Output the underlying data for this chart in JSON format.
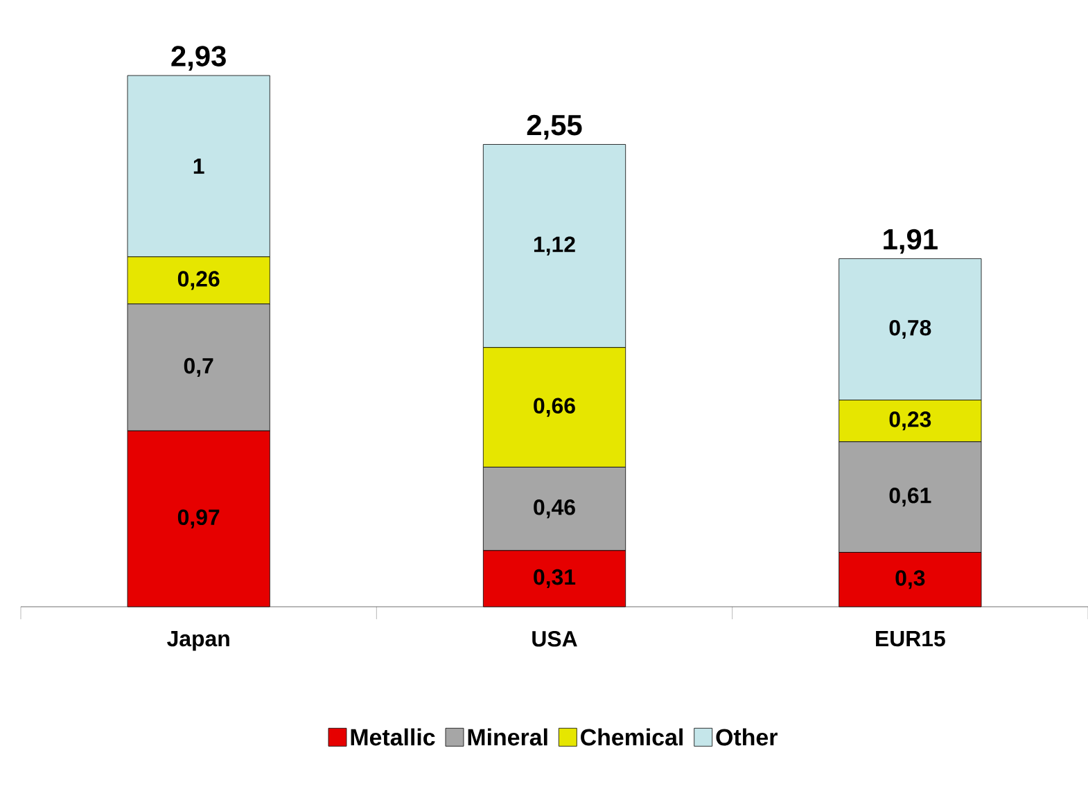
{
  "chart_data": {
    "type": "bar",
    "stacked": true,
    "legend": "bottom",
    "categories": [
      "Japan",
      "USA",
      "EUR15"
    ],
    "series": [
      {
        "name": "Metallic",
        "color": "#e60000",
        "values": [
          0.97,
          0.31,
          0.3
        ],
        "value_labels": [
          "0,97",
          "0,31",
          "0,3"
        ]
      },
      {
        "name": "Mineral",
        "color": "#a6a6a6",
        "values": [
          0.7,
          0.46,
          0.61
        ],
        "value_labels": [
          "0,7",
          "0,46",
          "0,61"
        ]
      },
      {
        "name": "Chemical",
        "color": "#e6e600",
        "values": [
          0.26,
          0.66,
          0.23
        ],
        "value_labels": [
          "0,26",
          "0,66",
          "0,23"
        ]
      },
      {
        "name": "Other",
        "color": "#c5e6ea",
        "values": [
          1,
          1.12,
          0.78
        ],
        "value_labels": [
          "1",
          "1,12",
          "0,78"
        ]
      }
    ],
    "totals": [
      "2,93",
      "2,55",
      "1,91"
    ]
  }
}
